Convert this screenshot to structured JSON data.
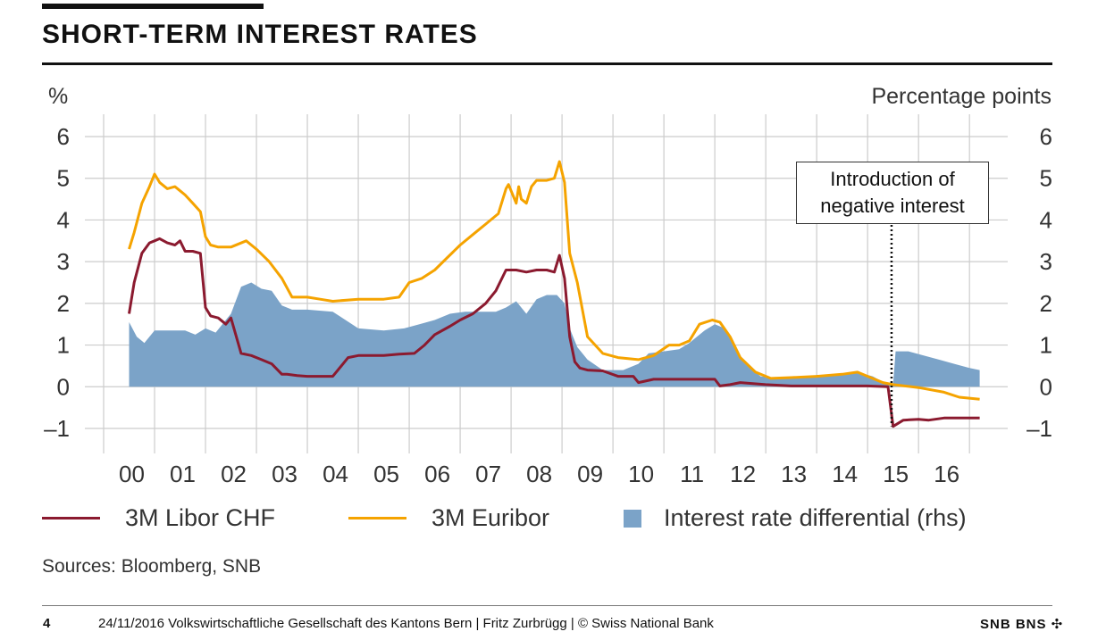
{
  "title": "SHORT-TERM INTEREST RATES",
  "axis_left_unit": "%",
  "axis_right_unit": "Percentage points",
  "annotation": {
    "line1": "Introduction of",
    "line2": "negative interest"
  },
  "sources": "Sources: Bloomberg, SNB",
  "footer": {
    "page": "4",
    "text": "24/11/2016   Volkswirtschaftliche Gesellschaft des Kantons Bern | Fritz Zurbrügg | © Swiss National Bank",
    "logo": "SNB BNS ✣"
  },
  "colors": {
    "libor": "#8b1a2f",
    "euribor": "#f5a300",
    "differential": "#7ba3c8",
    "grid": "#cccccc",
    "text": "#333333"
  },
  "legend": [
    {
      "label": "3M Libor CHF",
      "type": "line",
      "color": "#8b1a2f"
    },
    {
      "label": "3M Euribor",
      "type": "line",
      "color": "#f5a300"
    },
    {
      "label": "Interest rate differential (rhs)",
      "type": "area",
      "color": "#7ba3c8"
    }
  ],
  "chart_data": {
    "type": "line",
    "x_tick_labels": [
      "00",
      "01",
      "02",
      "03",
      "04",
      "05",
      "06",
      "07",
      "08",
      "09",
      "10",
      "11",
      "12",
      "13",
      "14",
      "15",
      "16"
    ],
    "ylim": [
      -1,
      6
    ],
    "y_ticks_left": [
      "6",
      "5",
      "4",
      "3",
      "2",
      "1",
      "0",
      "–1"
    ],
    "y_ticks_right": [
      "6",
      "5",
      "4",
      "3",
      "2",
      "1",
      "0",
      "–1"
    ],
    "ylabel_left": "%",
    "ylabel_right": "Percentage points",
    "grid": true,
    "annotation_x": 2014.97,
    "series": [
      {
        "name": "3M Libor CHF",
        "color": "#8b1a2f",
        "x": [
          2000.0,
          2000.1,
          2000.25,
          2000.4,
          2000.5,
          2000.6,
          2000.75,
          2000.9,
          2001.0,
          2001.1,
          2001.25,
          2001.4,
          2001.5,
          2001.6,
          2001.75,
          2001.9,
          2002.0,
          2002.2,
          2002.4,
          2002.6,
          2002.8,
          2003.0,
          2003.1,
          2003.3,
          2003.5,
          2003.75,
          2004.0,
          2004.3,
          2004.5,
          2004.75,
          2005.0,
          2005.3,
          2005.6,
          2005.8,
          2006.0,
          2006.3,
          2006.5,
          2006.75,
          2007.0,
          2007.2,
          2007.4,
          2007.6,
          2007.8,
          2008.0,
          2008.2,
          2008.35,
          2008.45,
          2008.55,
          2008.65,
          2008.75,
          2008.85,
          2009.0,
          2009.3,
          2009.6,
          2009.9,
          2010.0,
          2010.3,
          2010.6,
          2010.9,
          2011.2,
          2011.5,
          2011.6,
          2011.8,
          2012.0,
          2012.5,
          2013.0,
          2013.5,
          2014.0,
          2014.5,
          2014.9,
          2015.0,
          2015.2,
          2015.5,
          2015.7,
          2016.0,
          2016.3,
          2016.6,
          2016.7
        ],
        "y": [
          1.75,
          2.5,
          3.2,
          3.45,
          3.5,
          3.55,
          3.45,
          3.4,
          3.5,
          3.25,
          3.25,
          3.2,
          1.9,
          1.7,
          1.65,
          1.5,
          1.65,
          0.8,
          0.75,
          0.65,
          0.55,
          0.3,
          0.3,
          0.27,
          0.25,
          0.25,
          0.25,
          0.7,
          0.75,
          0.75,
          0.75,
          0.78,
          0.8,
          1.0,
          1.25,
          1.45,
          1.6,
          1.75,
          2.0,
          2.3,
          2.8,
          2.8,
          2.75,
          2.8,
          2.8,
          2.75,
          3.15,
          2.6,
          1.2,
          0.6,
          0.45,
          0.4,
          0.38,
          0.25,
          0.25,
          0.1,
          0.18,
          0.18,
          0.18,
          0.18,
          0.18,
          0.02,
          0.05,
          0.1,
          0.05,
          0.02,
          0.02,
          0.02,
          0.02,
          0.0,
          -0.95,
          -0.8,
          -0.78,
          -0.8,
          -0.75,
          -0.75,
          -0.75,
          -0.75
        ]
      },
      {
        "name": "3M Euribor",
        "color": "#f5a300",
        "x": [
          2000.0,
          2000.1,
          2000.25,
          2000.4,
          2000.5,
          2000.6,
          2000.75,
          2000.9,
          2001.0,
          2001.1,
          2001.25,
          2001.4,
          2001.5,
          2001.6,
          2001.75,
          2002.0,
          2002.3,
          2002.5,
          2002.75,
          2003.0,
          2003.2,
          2003.5,
          2003.75,
          2004.0,
          2004.5,
          2005.0,
          2005.3,
          2005.5,
          2005.75,
          2006.0,
          2006.25,
          2006.5,
          2006.75,
          2007.0,
          2007.25,
          2007.4,
          2007.45,
          2007.6,
          2007.65,
          2007.7,
          2007.8,
          2007.9,
          2008.0,
          2008.2,
          2008.35,
          2008.45,
          2008.55,
          2008.65,
          2008.8,
          2009.0,
          2009.3,
          2009.6,
          2010.0,
          2010.3,
          2010.6,
          2010.8,
          2011.0,
          2011.2,
          2011.45,
          2011.6,
          2011.8,
          2012.0,
          2012.3,
          2012.6,
          2013.0,
          2013.5,
          2014.0,
          2014.3,
          2014.5,
          2014.8,
          2015.0,
          2015.5,
          2016.0,
          2016.3,
          2016.7
        ],
        "y": [
          3.3,
          3.7,
          4.4,
          4.8,
          5.1,
          4.9,
          4.75,
          4.8,
          4.7,
          4.6,
          4.4,
          4.2,
          3.6,
          3.4,
          3.35,
          3.35,
          3.5,
          3.3,
          3.0,
          2.6,
          2.15,
          2.15,
          2.1,
          2.05,
          2.1,
          2.1,
          2.15,
          2.5,
          2.6,
          2.8,
          3.1,
          3.4,
          3.65,
          3.9,
          4.15,
          4.75,
          4.85,
          4.4,
          4.8,
          4.5,
          4.4,
          4.8,
          4.95,
          4.95,
          5.0,
          5.4,
          4.9,
          3.2,
          2.5,
          1.2,
          0.8,
          0.7,
          0.65,
          0.75,
          1.0,
          1.0,
          1.1,
          1.5,
          1.6,
          1.55,
          1.2,
          0.7,
          0.35,
          0.2,
          0.22,
          0.25,
          0.3,
          0.35,
          0.25,
          0.1,
          0.05,
          -0.02,
          -0.13,
          -0.25,
          -0.3
        ]
      },
      {
        "name": "Interest rate differential (rhs)",
        "color": "#7ba3c8",
        "type": "area",
        "x": [
          2000.0,
          2000.15,
          2000.3,
          2000.5,
          2000.7,
          2000.9,
          2001.1,
          2001.3,
          2001.5,
          2001.7,
          2001.9,
          2002.0,
          2002.2,
          2002.4,
          2002.6,
          2002.8,
          2003.0,
          2003.2,
          2003.5,
          2004.0,
          2004.5,
          2005.0,
          2005.4,
          2005.7,
          2006.0,
          2006.3,
          2006.6,
          2006.9,
          2007.2,
          2007.4,
          2007.6,
          2007.8,
          2008.0,
          2008.2,
          2008.4,
          2008.55,
          2008.65,
          2008.8,
          2009.0,
          2009.3,
          2009.7,
          2010.0,
          2010.2,
          2010.5,
          2010.8,
          2011.0,
          2011.3,
          2011.5,
          2011.7,
          2011.9,
          2012.1,
          2012.4,
          2012.8,
          2013.0,
          2013.5,
          2014.0,
          2014.3,
          2014.6,
          2014.9,
          2015.0,
          2015.05,
          2015.3,
          2015.6,
          2015.9,
          2016.2,
          2016.5,
          2016.7
        ],
        "y": [
          1.55,
          1.2,
          1.05,
          1.35,
          1.35,
          1.35,
          1.35,
          1.25,
          1.4,
          1.3,
          1.6,
          1.75,
          2.4,
          2.5,
          2.35,
          2.3,
          1.95,
          1.85,
          1.85,
          1.8,
          1.4,
          1.35,
          1.4,
          1.5,
          1.6,
          1.75,
          1.8,
          1.8,
          1.8,
          1.9,
          2.05,
          1.75,
          2.1,
          2.2,
          2.2,
          2.0,
          1.4,
          0.95,
          0.65,
          0.4,
          0.4,
          0.55,
          0.8,
          0.85,
          0.9,
          1.05,
          1.35,
          1.5,
          1.4,
          0.95,
          0.55,
          0.25,
          0.2,
          0.22,
          0.28,
          0.3,
          0.35,
          0.25,
          0.05,
          0.05,
          0.85,
          0.85,
          0.75,
          0.65,
          0.55,
          0.45,
          0.4
        ]
      }
    ]
  }
}
